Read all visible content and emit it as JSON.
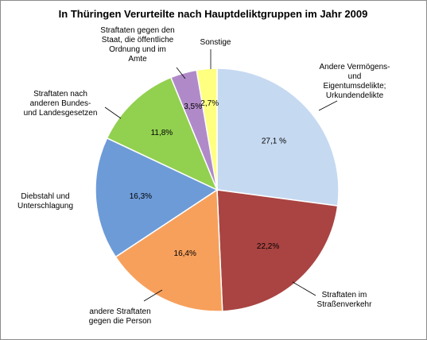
{
  "chart_data": {
    "type": "pie",
    "title": "In Thüringen Verurteilte nach Hauptdeliktgruppen im Jahr 2009",
    "slices": [
      {
        "category": [
          "Andere Vermögens-",
          "und",
          "Eigentumsdelikte;",
          "Urkundendelikte"
        ],
        "value": 27.1,
        "value_label": "27,1 %",
        "color": "#c5d9f1"
      },
      {
        "category": [
          "Straftaten im",
          "Straßenverkehr"
        ],
        "value": 22.2,
        "value_label": "22,2%",
        "color": "#a94442"
      },
      {
        "category": [
          "andere Straftaten",
          "gegen die Person"
        ],
        "value": 16.4,
        "value_label": "16,4%",
        "color": "#f7a05c"
      },
      {
        "category": [
          "Diebstahl und",
          "Unterschlagung"
        ],
        "value": 16.3,
        "value_label": "16,3%",
        "color": "#6d9bd8"
      },
      {
        "category": [
          "Straftaten nach",
          "anderen Bundes-",
          "und Landesgesetzen"
        ],
        "value": 11.8,
        "value_label": "11,8%",
        "color": "#92d050"
      },
      {
        "category": [
          "Straftaten gegen den",
          "Staat, die öffentliche",
          "Ordnung und im",
          "Amte"
        ],
        "value": 3.5,
        "value_label": "3,5%",
        "color": "#b08ac8"
      },
      {
        "category": [
          "Sonstige"
        ],
        "value": 2.7,
        "value_label": "2,7%",
        "color": "#ffff80"
      }
    ]
  }
}
